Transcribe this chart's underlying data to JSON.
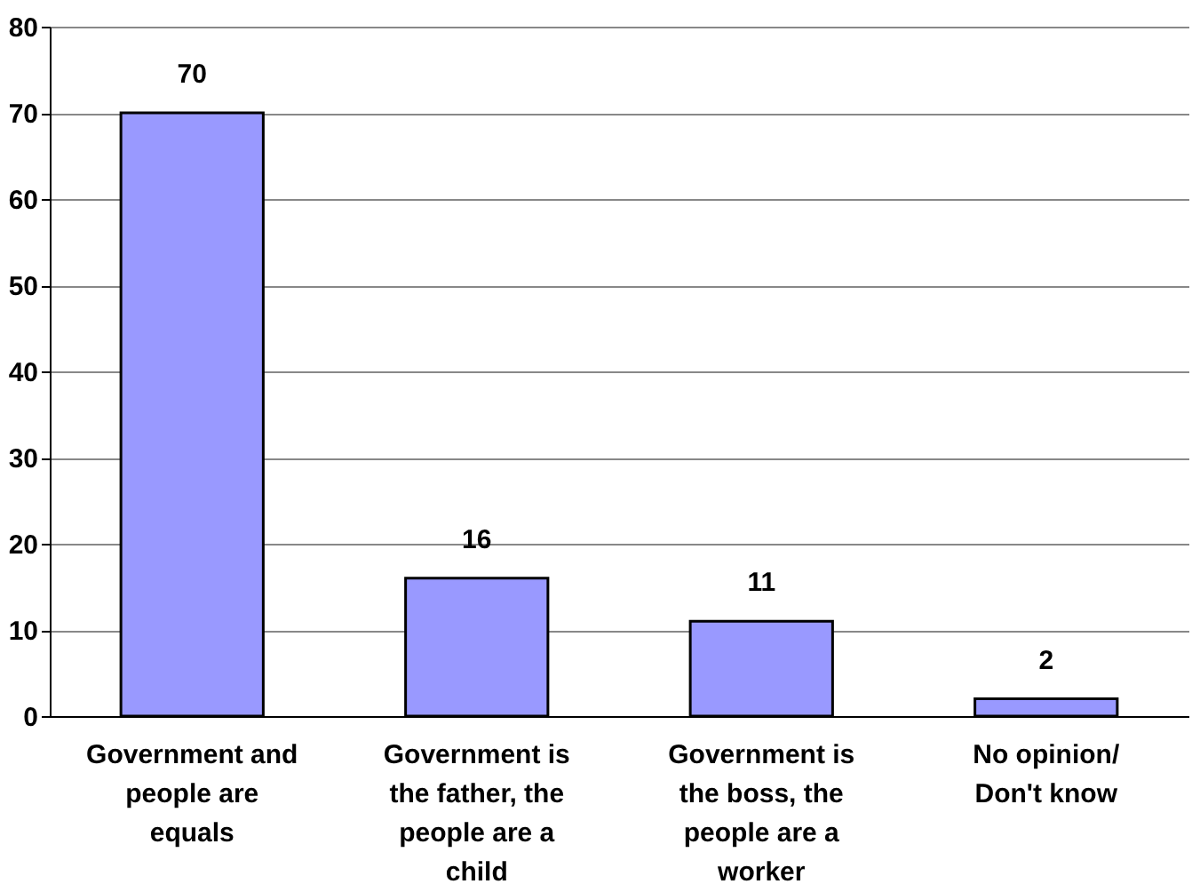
{
  "chart_data": {
    "type": "bar",
    "categories": [
      "Government and people are equals",
      "Government is the father, the people are a child",
      "Government is the boss, the people are a worker",
      "No opinion/ Don't know"
    ],
    "values": [
      70,
      16,
      11,
      2
    ],
    "color": "#9999ff",
    "ylim": [
      0,
      80
    ],
    "yticks": [
      0,
      10,
      20,
      30,
      40,
      50,
      60,
      70,
      80
    ],
    "grid": "y",
    "data_labels": true
  }
}
